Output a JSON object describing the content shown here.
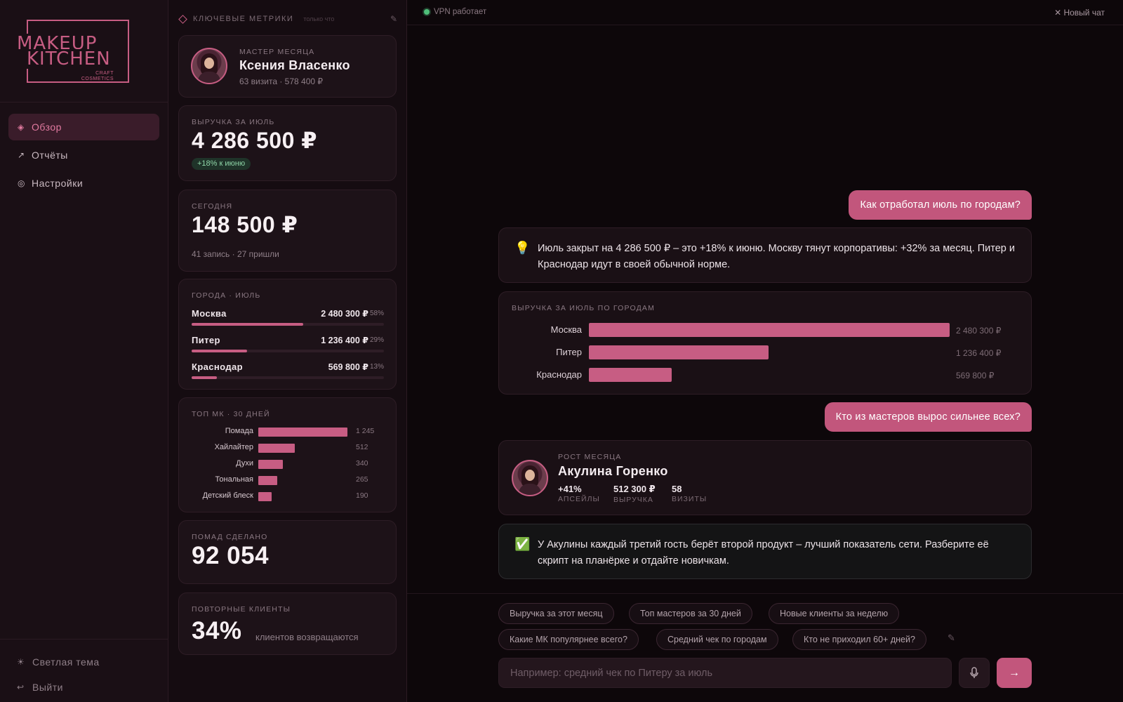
{
  "brand": {
    "line1": "MAKEUP",
    "line2": "KITCHEN",
    "sub1": "CRAFT",
    "sub2": "COSMETICS",
    "accent_color": "#c75d83"
  },
  "nav": {
    "items": [
      {
        "icon": "diamond-icon",
        "glyph": "◈",
        "label": "Обзор",
        "active": true
      },
      {
        "icon": "trend-arrow-icon",
        "glyph": "↗",
        "label": "Отчёты",
        "active": false
      },
      {
        "icon": "settings-circle-icon",
        "glyph": "◎",
        "label": "Настройки",
        "active": false
      }
    ],
    "light_theme": "Светлая тема",
    "light_theme_glyph": "☀",
    "logout": "Выйти",
    "logout_glyph": "↩"
  },
  "metrics": {
    "title": "КЛЮЧЕВЫЕ МЕТРИКИ",
    "updated": "только что",
    "edit_glyph": "✎",
    "master": {
      "label": "МАСТЕР МЕСЯЦА",
      "name": "Ксения Власенко",
      "sub": "63 визита · 578 400 ₽"
    },
    "revenue": {
      "label": "ВЫРУЧКА ЗА ИЮЛЬ",
      "value": "4 286 500 ₽",
      "badge": "+18% к июню"
    },
    "today": {
      "label": "СЕГОДНЯ",
      "value": "148 500 ₽",
      "sub": "41 запись · 27 пришли"
    },
    "cities": {
      "label": "ГОРОДА · ИЮЛЬ",
      "rows": [
        {
          "name": "Москва",
          "value": "2 480 300 ₽",
          "pct": "58%",
          "share": 0.58
        },
        {
          "name": "Питер",
          "value": "1 236 400 ₽",
          "pct": "29%",
          "share": 0.29
        },
        {
          "name": "Краснодар",
          "value": "569 800 ₽",
          "pct": "13%",
          "share": 0.13
        }
      ]
    },
    "top_mk": {
      "label": "ТОП МК · 30 ДНЕЙ",
      "rows": [
        {
          "name": "Помада",
          "value": "1 245",
          "n": 1245
        },
        {
          "name": "Хайлайтер",
          "value": "512",
          "n": 512
        },
        {
          "name": "Духи",
          "value": "340",
          "n": 340
        },
        {
          "name": "Тональная",
          "value": "265",
          "n": 265
        },
        {
          "name": "Детский блеск",
          "value": "190",
          "n": 190
        }
      ]
    },
    "lipsticks": {
      "label": "ПОМАД СДЕЛАНО",
      "value": "92 054"
    },
    "repeat": {
      "label": "ПОВТОРНЫЕ КЛИЕНТЫ",
      "value": "34%",
      "sub": "клиентов возвращаются"
    }
  },
  "chat": {
    "vpn": "VPN работает",
    "new_chat": "✕ Новый чат",
    "q1": "Как отработал июль по городам?",
    "a1_icon": "💡",
    "a1": "Июль закрыт на 4 286 500 ₽ – это +18% к июню. Москву тянут корпоративы: +32% за месяц. Питер и Краснодар идут в своей обычной норме.",
    "q2": "Кто из мастеров вырос сильнее всех?",
    "growth": {
      "label": "РОСТ МЕСЯЦА",
      "name": "Акулина Горенко",
      "stats": [
        {
          "value": "+41%",
          "key": "АПСЕЙЛЫ"
        },
        {
          "value": "512 300 ₽",
          "key": "ВЫРУЧКА"
        },
        {
          "value": "58",
          "key": "ВИЗИТЫ"
        }
      ]
    },
    "tip_icon": "✅",
    "tip": "У Акулины каждый третий гость берёт второй продукт – лучший показатель сети. Разберите её скрипт на планёрке и отдайте новичкам.",
    "suggestions": [
      "Выручка за этот месяц",
      "Топ мастеров за 30 дней",
      "Новые клиенты за неделю",
      "Какие МК популярнее всего?",
      "Средний чек по городам",
      "Кто не приходил 60+ дней?"
    ],
    "input_placeholder": "Например: средний чек по Питеру за июль",
    "send_glyph": "→"
  },
  "chart_data": {
    "type": "bar",
    "title": "ВЫРУЧКА ЗА ИЮЛЬ ПО ГОРОДАМ",
    "categories": [
      "Москва",
      "Питер",
      "Краснодар"
    ],
    "values": [
      2480300,
      1236400,
      569800
    ],
    "value_labels": [
      "2 480 300 ₽",
      "1 236 400 ₽",
      "569 800 ₽"
    ],
    "orientation": "horizontal",
    "xlabel": "",
    "ylabel": ""
  }
}
